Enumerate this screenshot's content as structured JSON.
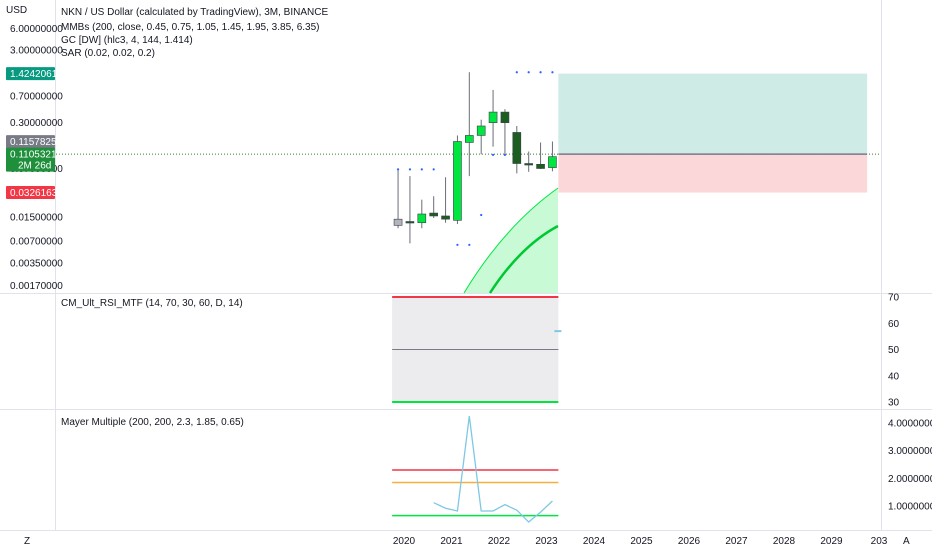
{
  "header": {
    "currency": "USD",
    "title": "NKN / US Dollar (calculated by TradingView), 3M, BINANCE",
    "indicators": [
      "MMBs (200, close, 0.45, 0.75, 1.05, 1.45, 1.95, 3.85, 6.35)",
      "GC [DW] (hlc3, 4, 144, 1.414)",
      "SAR (0.02, 0.02, 0.2)"
    ]
  },
  "price_axis": {
    "scale": "log",
    "ticks": [
      "6.00000000",
      "3.00000000",
      "0.70000000",
      "0.30000000",
      "0.07000000",
      "0.01500000",
      "0.00700000",
      "0.00350000",
      "0.00170000"
    ],
    "badges": [
      {
        "text": "1.42420610",
        "color": "#089981"
      },
      {
        "text": "0.11578259",
        "color": "#787b86"
      },
      {
        "text": "0.11053211",
        "sub": "2M 26d",
        "color": "#1e8f3a"
      },
      {
        "text": "0.03261630",
        "color": "#f23645"
      }
    ]
  },
  "rsi_panel": {
    "title": "CM_Ult_RSI_MTF (14, 70, 30, 60, D, 14)",
    "ticks": [
      "70",
      "60",
      "50",
      "40",
      "30"
    ]
  },
  "mayer_panel": {
    "title": "Mayer Multiple (200, 200, 2.3, 1.85, 0.65)",
    "ticks": [
      "4.00000000",
      "3.00000000",
      "2.00000000",
      "1.00000000"
    ]
  },
  "time_axis": {
    "labels": [
      "2020",
      "2021",
      "2022",
      "2023",
      "2024",
      "2025",
      "2026",
      "2027",
      "2028",
      "2029",
      "203"
    ]
  },
  "corner_buttons": {
    "left": "Z",
    "right": "A"
  },
  "colors": {
    "up": "#00e640",
    "down": "#1b5e20",
    "neutral": "#b2b5be",
    "profit": "#089981",
    "loss": "#f23645"
  },
  "chart_data": [
    {
      "type": "candlestick",
      "title": "NKN / US Dollar (calculated by TradingView), 3M, BINANCE",
      "yscale": "log",
      "x": [
        "2019-Q4",
        "2020-Q1",
        "2020-Q2",
        "2020-Q3",
        "2020-Q4",
        "2021-Q1",
        "2021-Q2",
        "2021-Q3",
        "2021-Q4",
        "2022-Q1",
        "2022-Q2",
        "2022-Q3",
        "2022-Q4",
        "2023-Q1"
      ],
      "open": [
        0.0115,
        0.013,
        0.0125,
        0.017,
        0.0155,
        0.0135,
        0.16,
        0.2,
        0.3,
        0.42,
        0.22,
        0.082,
        0.08,
        0.072
      ],
      "high": [
        0.066,
        0.055,
        0.026,
        0.029,
        0.053,
        0.2,
        1.49,
        0.33,
        0.85,
        0.46,
        0.27,
        0.12,
        0.16,
        0.165
      ],
      "low": [
        0.0105,
        0.0065,
        0.0105,
        0.0145,
        0.0125,
        0.012,
        0.055,
        0.11,
        0.14,
        0.105,
        0.06,
        0.063,
        0.069,
        0.064
      ],
      "close": [
        0.014,
        0.0125,
        0.0165,
        0.0155,
        0.014,
        0.165,
        0.2,
        0.27,
        0.42,
        0.3,
        0.082,
        0.08,
        0.07,
        0.102
      ],
      "sar": [
        {
          "x": "2019-Q4",
          "y": 0.068
        },
        {
          "x": "2020-Q1",
          "y": 0.068
        },
        {
          "x": "2020-Q2",
          "y": 0.068
        },
        {
          "x": "2020-Q3",
          "y": 0.068
        },
        {
          "x": "2021-Q1",
          "y": 0.0062
        },
        {
          "x": "2021-Q2",
          "y": 0.0062
        },
        {
          "x": "2021-Q3",
          "y": 0.016
        },
        {
          "x": "2021-Q4",
          "y": 0.108
        },
        {
          "x": "2022-Q1",
          "y": 0.108
        },
        {
          "x": "2022-Q2",
          "y": 1.49
        },
        {
          "x": "2022-Q3",
          "y": 1.49
        },
        {
          "x": "2022-Q4",
          "y": 1.49
        },
        {
          "x": "2023-Q1",
          "y": 1.49
        }
      ],
      "position": {
        "entry": 0.1105,
        "target": 1.4242,
        "stop": 0.0326,
        "start": "2023-Q2",
        "end": "2029-Q3"
      }
    },
    {
      "type": "line",
      "title": "CM_Ult_RSI_MTF (14, 70, 30, 60, D, 14)",
      "levels": [
        70,
        50,
        30
      ],
      "current": 57,
      "ylim": [
        30,
        70
      ]
    },
    {
      "type": "line",
      "title": "Mayer Multiple (200, 200, 2.3, 1.85, 0.65)",
      "levels": [
        2.3,
        1.85,
        0.65
      ],
      "x": [
        "2020-Q3",
        "2020-Q4",
        "2021-Q1",
        "2021-Q2",
        "2021-Q3",
        "2021-Q4",
        "2022-Q1",
        "2022-Q2",
        "2022-Q3",
        "2022-Q4",
        "2023-Q1"
      ],
      "values": [
        1.12,
        0.92,
        0.82,
        4.25,
        0.82,
        0.82,
        1.05,
        0.85,
        0.42,
        0.78,
        1.18
      ],
      "ylim": [
        0.3,
        4.4
      ]
    }
  ]
}
